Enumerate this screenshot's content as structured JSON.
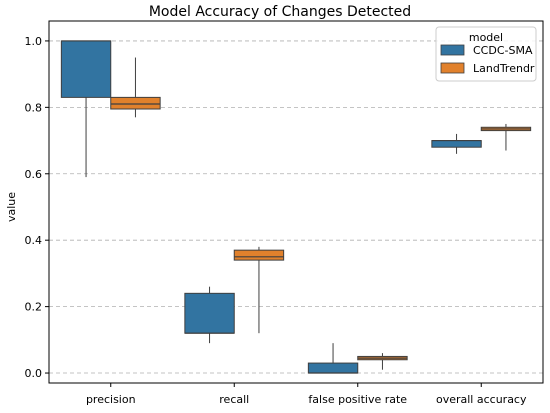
{
  "chart_data": {
    "type": "box",
    "title": "Model Accuracy of Changes Detected",
    "xlabel": "",
    "ylabel": "value",
    "ylim": [
      -0.03,
      1.06
    ],
    "yticks": [
      "0.0",
      "0.2",
      "0.4",
      "0.6",
      "0.8",
      "1.0"
    ],
    "grid": "horizontal, dashed",
    "legend_placement": "top-right",
    "legend_title": "model",
    "categories": [
      "precision",
      "recall",
      "false positive rate",
      "overall accuracy"
    ],
    "series": [
      {
        "name": "CCDC-SMA",
        "color": "#3274A1",
        "boxes": [
          {
            "min": 0.59,
            "q1": 0.83,
            "median": 1.0,
            "q3": 1.0,
            "max": 1.0
          },
          {
            "min": 0.09,
            "q1": 0.12,
            "median": 0.12,
            "q3": 0.24,
            "max": 0.26
          },
          {
            "min": 0.0,
            "q1": 0.0,
            "median": 0.0,
            "q3": 0.03,
            "max": 0.09
          },
          {
            "min": 0.66,
            "q1": 0.68,
            "median": 0.7,
            "q3": 0.7,
            "max": 0.72
          }
        ]
      },
      {
        "name": "LandTrendr",
        "color": "#E1812C",
        "boxes": [
          {
            "min": 0.77,
            "q1": 0.795,
            "median": 0.81,
            "q3": 0.83,
            "max": 0.95
          },
          {
            "min": 0.12,
            "q1": 0.34,
            "median": 0.35,
            "q3": 0.37,
            "max": 0.38
          },
          {
            "min": 0.01,
            "q1": 0.04,
            "median": 0.045,
            "q3": 0.05,
            "max": 0.06
          },
          {
            "min": 0.67,
            "q1": 0.73,
            "median": 0.735,
            "q3": 0.74,
            "max": 0.75
          }
        ]
      }
    ]
  }
}
